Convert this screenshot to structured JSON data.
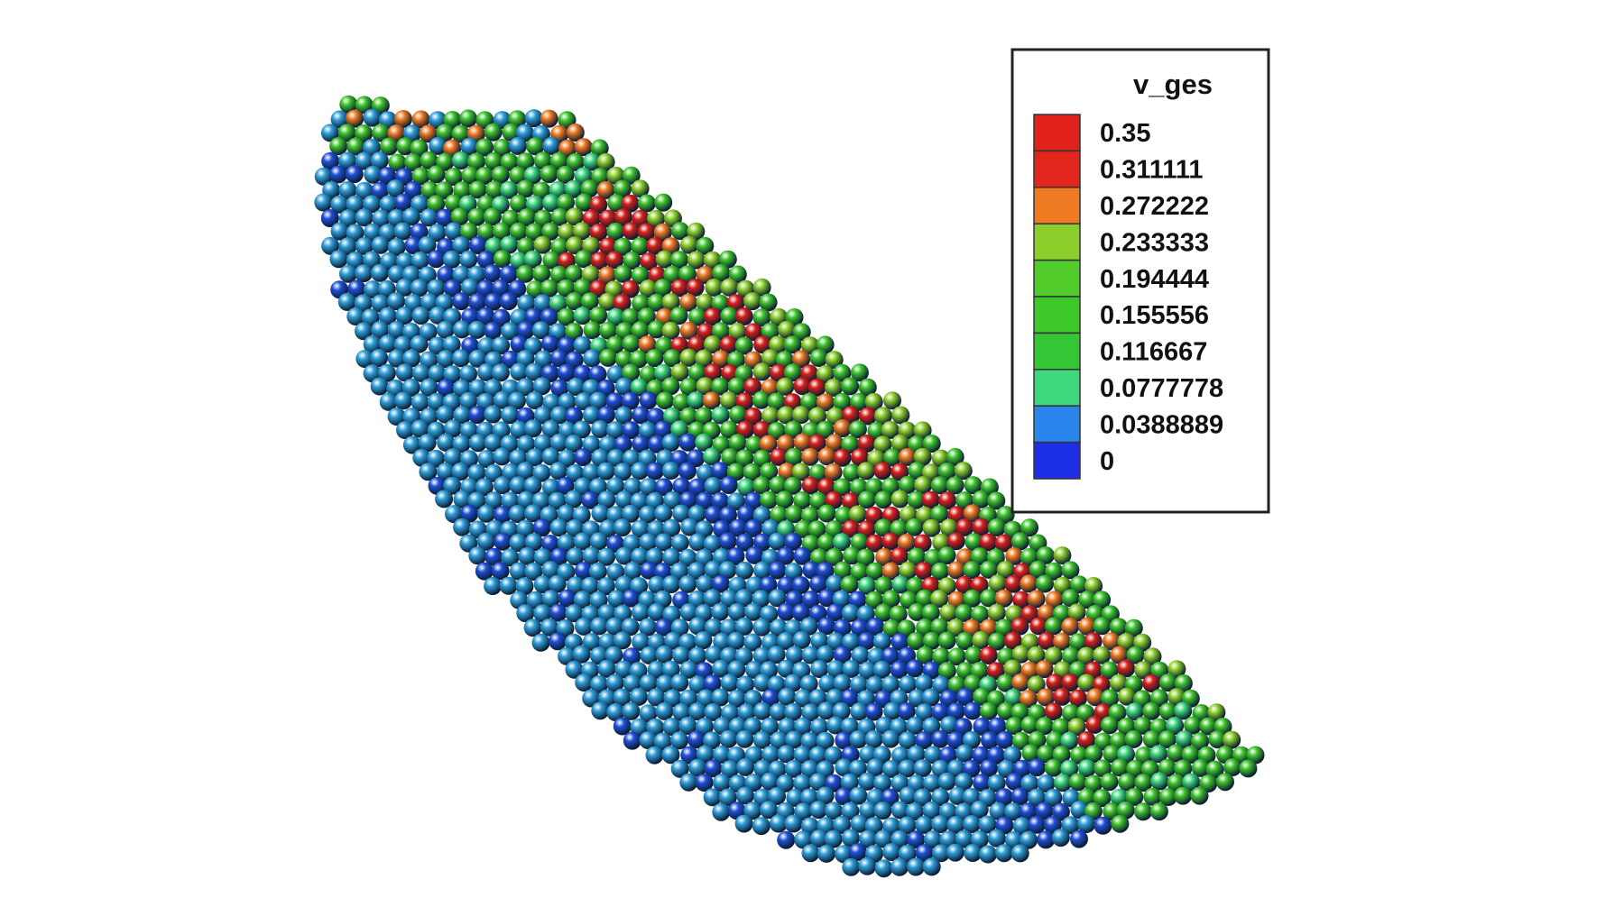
{
  "legend": {
    "title": "v_ges",
    "labels": [
      "0.35",
      "0.311111",
      "0.272222",
      "0.233333",
      "0.194444",
      "0.155556",
      "0.116667",
      "0.0777778",
      "0.0388889",
      "0"
    ],
    "colors": [
      "#e0221a",
      "#e3261c",
      "#ef7a22",
      "#8ccf2c",
      "#52cc2a",
      "#3ec92a",
      "#34c634",
      "#3ed87c",
      "#2a86ec",
      "#1c2ee6"
    ]
  }
}
